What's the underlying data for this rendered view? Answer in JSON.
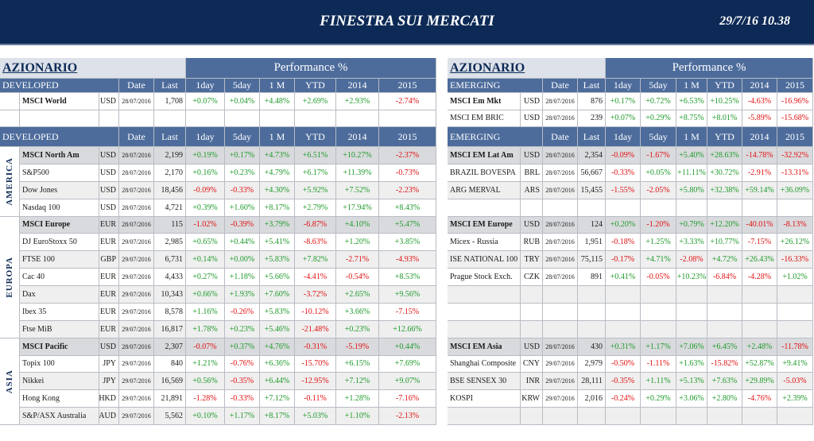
{
  "header": {
    "title": "FINESTRA SUI MERCATI",
    "timestamp": "29/7/16 10.38"
  },
  "left": {
    "section": "AZIONARIO",
    "performance": "Performance %",
    "group": "DEVELOPED",
    "columns": [
      "Date",
      "Last",
      "1day",
      "5day",
      "1 M",
      "YTD",
      "2014",
      "2015"
    ],
    "top_rows": [
      [
        "MSCI World",
        "USD",
        "28/07/2016",
        "1,708",
        "+0.07%",
        "+0.04%",
        "+4.48%",
        "+2.69%",
        "+2.93%",
        "-2.74%"
      ]
    ],
    "regions": [
      {
        "name": "AMERICA",
        "rows": [
          [
            "MSCI North Am",
            "USD",
            "28/07/2016",
            "2,199",
            "+0.19%",
            "+0.17%",
            "+4.73%",
            "+6.51%",
            "+10.27%",
            "-2.37%"
          ],
          [
            "S&P500",
            "USD",
            "28/07/2016",
            "2,170",
            "+0.16%",
            "+0.23%",
            "+4.79%",
            "+6.17%",
            "+11.39%",
            "-0.73%"
          ],
          [
            "Dow Jones",
            "USD",
            "28/07/2016",
            "18,456",
            "-0.09%",
            "-0.33%",
            "+4.30%",
            "+5.92%",
            "+7.52%",
            "-2.23%"
          ],
          [
            "Nasdaq 100",
            "USD",
            "28/07/2016",
            "4,721",
            "+0.39%",
            "+1.60%",
            "+8.17%",
            "+2.79%",
            "+17.94%",
            "+8.43%"
          ]
        ]
      },
      {
        "name": "EUROPA",
        "rows": [
          [
            "MSCI Europe",
            "EUR",
            "28/07/2016",
            "115",
            "-1.02%",
            "-0.39%",
            "+3.79%",
            "-6.87%",
            "+4.10%",
            "+5.47%"
          ],
          [
            "DJ EuroStoxx 50",
            "EUR",
            "29/07/2016",
            "2,985",
            "+0.65%",
            "+0.44%",
            "+5.41%",
            "-8.63%",
            "+1.20%",
            "+3.85%"
          ],
          [
            "FTSE 100",
            "GBP",
            "29/07/2016",
            "6,731",
            "+0.14%",
            "+0.00%",
            "+5.83%",
            "+7.82%",
            "-2.71%",
            "-4.93%"
          ],
          [
            "Cac 40",
            "EUR",
            "29/07/2016",
            "4,433",
            "+0.27%",
            "+1.18%",
            "+5.66%",
            "-4.41%",
            "-0.54%",
            "+8.53%"
          ],
          [
            "Dax",
            "EUR",
            "29/07/2016",
            "10,343",
            "+0.66%",
            "+1.93%",
            "+7.60%",
            "-3.72%",
            "+2.65%",
            "+9.56%"
          ],
          [
            "Ibex 35",
            "EUR",
            "29/07/2016",
            "8,578",
            "+1.16%",
            "-0.26%",
            "+5.83%",
            "-10.12%",
            "+3.66%",
            "-7.15%"
          ],
          [
            "Ftse MiB",
            "EUR",
            "29/07/2016",
            "16,817",
            "+1.78%",
            "+0.23%",
            "+5.46%",
            "-21.48%",
            "+0.23%",
            "+12.66%"
          ]
        ]
      },
      {
        "name": "ASIA",
        "rows": [
          [
            "MSCI Pacific",
            "USD",
            "28/07/2016",
            "2,307",
            "-0.07%",
            "+0.37%",
            "+4.76%",
            "-0.31%",
            "-5.19%",
            "+0.44%"
          ],
          [
            "Topix 100",
            "JPY",
            "29/07/2016",
            "840",
            "+1.21%",
            "-0.76%",
            "+6.36%",
            "-15.70%",
            "+6.15%",
            "+7.69%"
          ],
          [
            "Nikkei",
            "JPY",
            "29/07/2016",
            "16,569",
            "+0.56%",
            "-0.35%",
            "+6.44%",
            "-12.95%",
            "+7.12%",
            "+9.07%"
          ],
          [
            "Hong Kong",
            "HKD",
            "29/07/2016",
            "21,891",
            "-1.28%",
            "-0.33%",
            "+7.12%",
            "-0.11%",
            "+1.28%",
            "-7.16%"
          ],
          [
            "S&P/ASX Australia",
            "AUD",
            "29/07/2016",
            "5,562",
            "+0.10%",
            "+1.17%",
            "+8.17%",
            "+5.03%",
            "+1.10%",
            "-2.13%"
          ]
        ]
      }
    ]
  },
  "right": {
    "section": "AZIONARIO",
    "performance": "Performance %",
    "group": "EMERGING",
    "columns": [
      "Date",
      "Last",
      "1day",
      "5day",
      "1 M",
      "YTD",
      "2014",
      "2015"
    ],
    "top_rows": [
      [
        "MSCI Em Mkt",
        "USD",
        "28/07/2016",
        "876",
        "+0.17%",
        "+0.72%",
        "+6.53%",
        "+10.25%",
        "-4.63%",
        "-16.96%"
      ],
      [
        "MSCI EM BRIC",
        "USD",
        "28/07/2016",
        "239",
        "+0.07%",
        "+0.29%",
        "+8.75%",
        "+8.01%",
        "-5.89%",
        "-15.68%"
      ]
    ],
    "regions": [
      {
        "rows": [
          [
            "MSCI EM Lat Am",
            "USD",
            "28/07/2016",
            "2,354",
            "-0.09%",
            "-1.67%",
            "+5.40%",
            "+28.63%",
            "-14.78%",
            "-32.92%"
          ],
          [
            "BRAZIL BOVESPA",
            "BRL",
            "28/07/2016",
            "56,667",
            "-0.33%",
            "+0.05%",
            "+11.11%",
            "+30.72%",
            "-2.91%",
            "-13.31%"
          ],
          [
            "ARG MERVAL",
            "ARS",
            "28/07/2016",
            "15,455",
            "-1.55%",
            "-2.05%",
            "+5.80%",
            "+32.38%",
            "+59.14%",
            "+36.09%"
          ]
        ]
      },
      {
        "rows": [
          [
            "MSCI EM Europe",
            "USD",
            "28/07/2016",
            "124",
            "+0.20%",
            "-1.20%",
            "+0.79%",
            "+12.20%",
            "-40.01%",
            "-8.13%"
          ],
          [
            "Micex - Russia",
            "RUB",
            "28/07/2016",
            "1,951",
            "-0.18%",
            "+1.25%",
            "+3.33%",
            "+10.77%",
            "-7.15%",
            "+26.12%"
          ],
          [
            "ISE NATIONAL 100",
            "TRY",
            "28/07/2016",
            "75,115",
            "-0.17%",
            "+4.71%",
            "-2.08%",
            "+4.72%",
            "+26.43%",
            "-16.33%"
          ],
          [
            "Prague Stock Exch.",
            "CZK",
            "28/07/2016",
            "891",
            "+0.41%",
            "-0.05%",
            "+10.23%",
            "-6.84%",
            "-4.28%",
            "+1.02%"
          ]
        ]
      },
      {
        "rows": [
          [
            "MSCI EM Asia",
            "USD",
            "28/07/2016",
            "430",
            "+0.31%",
            "+1.17%",
            "+7.06%",
            "+6.45%",
            "+2.48%",
            "-11.78%"
          ],
          [
            "Shanghai Composite",
            "CNY",
            "29/07/2016",
            "2,979",
            "-0.50%",
            "-1.11%",
            "+1.63%",
            "-15.82%",
            "+52.87%",
            "+9.41%"
          ],
          [
            "BSE SENSEX 30",
            "INR",
            "29/07/2016",
            "28,111",
            "-0.35%",
            "+1.11%",
            "+5.13%",
            "+7.63%",
            "+29.89%",
            "-5.03%"
          ],
          [
            "KOSPI",
            "KRW",
            "29/07/2016",
            "2,016",
            "-0.24%",
            "+0.29%",
            "+3.06%",
            "+2.80%",
            "-4.76%",
            "+2.39%"
          ]
        ]
      }
    ]
  }
}
